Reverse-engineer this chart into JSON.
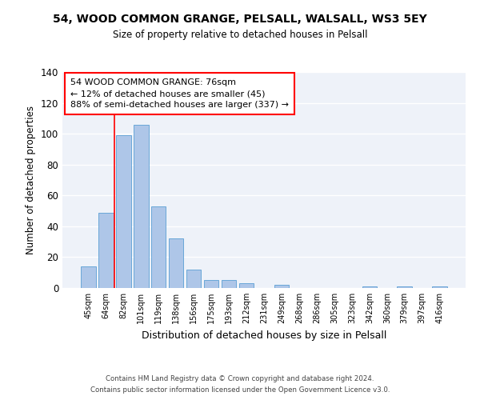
{
  "title": "54, WOOD COMMON GRANGE, PELSALL, WALSALL, WS3 5EY",
  "subtitle": "Size of property relative to detached houses in Pelsall",
  "xlabel": "Distribution of detached houses by size in Pelsall",
  "ylabel": "Number of detached properties",
  "bar_labels": [
    "45sqm",
    "64sqm",
    "82sqm",
    "101sqm",
    "119sqm",
    "138sqm",
    "156sqm",
    "175sqm",
    "193sqm",
    "212sqm",
    "231sqm",
    "249sqm",
    "268sqm",
    "286sqm",
    "305sqm",
    "323sqm",
    "342sqm",
    "360sqm",
    "379sqm",
    "397sqm",
    "416sqm"
  ],
  "bar_heights": [
    14,
    49,
    99,
    106,
    53,
    32,
    12,
    5,
    5,
    3,
    0,
    2,
    0,
    0,
    0,
    0,
    1,
    0,
    1,
    0,
    1
  ],
  "bar_color": "#aec6e8",
  "bar_edge_color": "#5a9fd4",
  "ylim": [
    0,
    140
  ],
  "yticks": [
    0,
    20,
    40,
    60,
    80,
    100,
    120,
    140
  ],
  "vline_color": "red",
  "annotation_text": "54 WOOD COMMON GRANGE: 76sqm\n← 12% of detached houses are smaller (45)\n88% of semi-detached houses are larger (337) →",
  "annotation_box_color": "white",
  "annotation_box_edge_color": "red",
  "footnote1": "Contains HM Land Registry data © Crown copyright and database right 2024.",
  "footnote2": "Contains public sector information licensed under the Open Government Licence v3.0.",
  "background_color": "#eef2f9"
}
